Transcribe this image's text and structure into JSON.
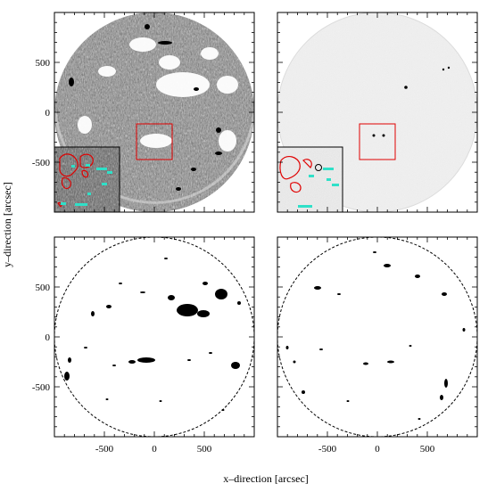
{
  "figure": {
    "xlabel": "x–direction [arcsec]",
    "ylabel": "y–direction [arcsec]"
  },
  "axes": {
    "ticks": [
      -500,
      0,
      500
    ],
    "x_tick_labels": [
      "-500",
      "0",
      "500"
    ],
    "y_tick_labels": [
      "500",
      "0",
      "-500"
    ],
    "range_arcsec": [
      -1000,
      1000
    ]
  },
  "panels": [
    {
      "id": "top-left",
      "content": "magnetogram-full-disk",
      "inset": "zoom-contours",
      "selection_box": true
    },
    {
      "id": "top-right",
      "content": "continuum-full-disk",
      "inset": "zoom-contours",
      "selection_box": true
    },
    {
      "id": "bottom-left",
      "content": "binary-mask-features"
    },
    {
      "id": "bottom-right",
      "content": "binary-mask-features"
    }
  ],
  "colors": {
    "box": "#e00000",
    "contour_red": "#e00000",
    "contour_cyan": "#2fe0c8",
    "disk_light": "#ececec",
    "features": "#000000"
  }
}
